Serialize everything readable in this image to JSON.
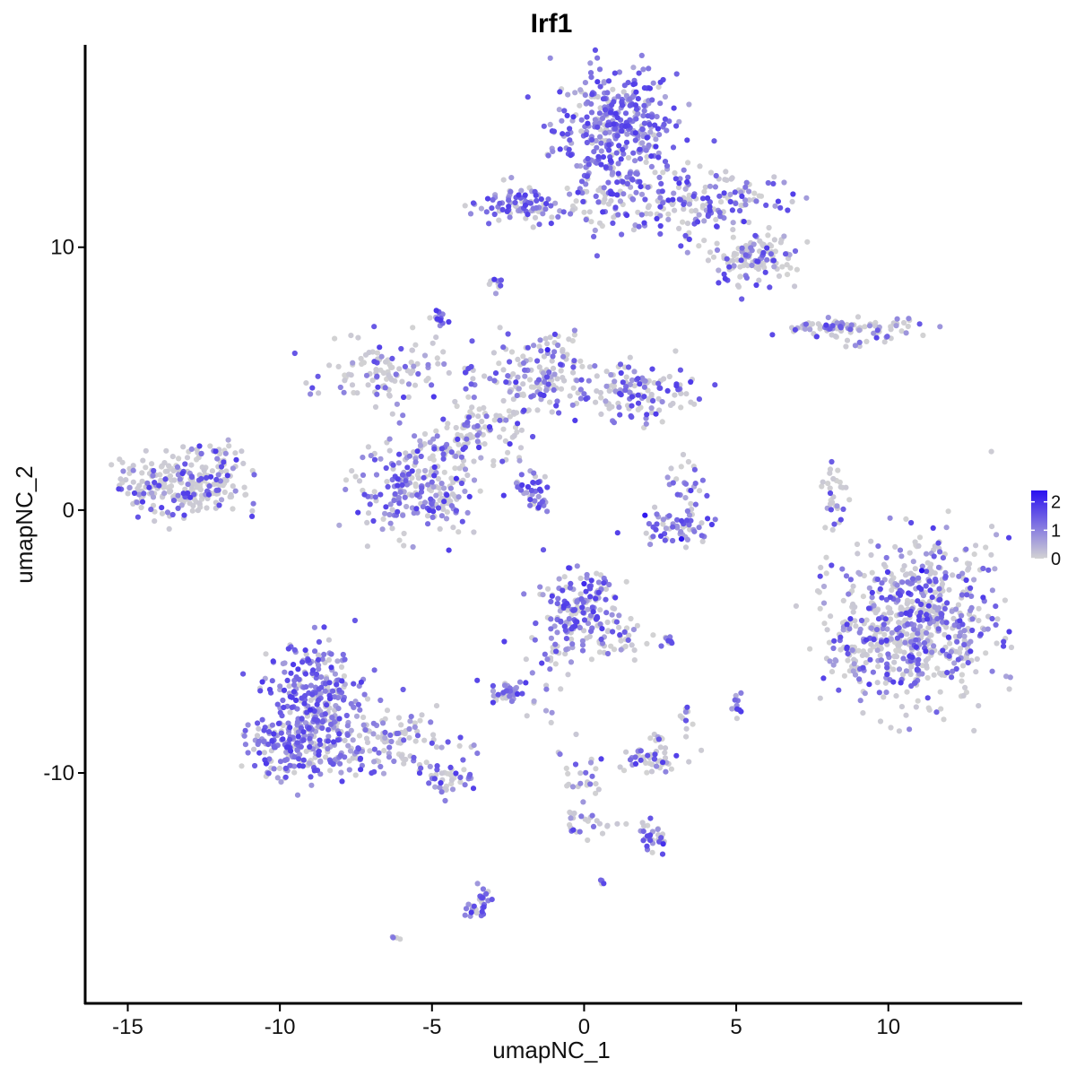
{
  "chart_data": {
    "type": "scatter",
    "title": "Irf1",
    "xlabel": "umapNC_1",
    "ylabel": "umapNC_2",
    "xlim": [
      -16.4,
      14.4
    ],
    "ylim": [
      -18.8,
      17.7
    ],
    "xticks": [
      -15,
      -10,
      -5,
      0,
      5,
      10
    ],
    "xtick_labels": [
      "-15",
      "-10",
      "-5",
      "0",
      "5",
      "10"
    ],
    "yticks": [
      -10,
      0,
      10
    ],
    "ytick_labels": [
      "-10",
      "0",
      "10"
    ],
    "grid": false,
    "legend": {
      "position": "right",
      "type": "colorbar",
      "min": 0,
      "max": 2.4,
      "ticks": [
        0,
        1,
        2
      ],
      "tick_labels": [
        "0",
        "1",
        "2"
      ],
      "low_color": "#d3d3d3",
      "high_color": "#2a11f0"
    },
    "colors": {
      "low": "#d3d3d3",
      "high": "#2a11f0"
    },
    "clusters": [
      {
        "cx": 1.0,
        "cy": 14.5,
        "sx": 1.0,
        "sy": 1.2,
        "n": 380,
        "expr": 0.85
      },
      {
        "cx": 3.8,
        "cy": 11.8,
        "sx": 1.5,
        "sy": 0.6,
        "n": 170,
        "expr": 0.55
      },
      {
        "cx": 5.5,
        "cy": 9.6,
        "sx": 0.7,
        "sy": 0.5,
        "n": 130,
        "expr": 0.3
      },
      {
        "cx": 0.6,
        "cy": 11.5,
        "sx": 1.2,
        "sy": 0.5,
        "n": 60,
        "expr": 0.35
      },
      {
        "cx": -2.3,
        "cy": 11.6,
        "sx": 0.6,
        "sy": 0.35,
        "n": 75,
        "expr": 0.75
      },
      {
        "cx": -2.9,
        "cy": 8.6,
        "sx": 0.15,
        "sy": 0.15,
        "n": 10,
        "expr": 0.6
      },
      {
        "cx": -4.7,
        "cy": 7.3,
        "sx": 0.15,
        "sy": 0.2,
        "n": 15,
        "expr": 0.7
      },
      {
        "cx": -6.5,
        "cy": 5.2,
        "sx": 1.0,
        "sy": 0.6,
        "n": 110,
        "expr": 0.35
      },
      {
        "cx": -5.5,
        "cy": 0.8,
        "sx": 1.0,
        "sy": 0.9,
        "n": 220,
        "expr": 0.55
      },
      {
        "cx": -3.5,
        "cy": 3.0,
        "sx": 0.8,
        "sy": 0.9,
        "n": 80,
        "expr": 0.3
      },
      {
        "cx": -1.5,
        "cy": 5.2,
        "sx": 0.9,
        "sy": 0.8,
        "n": 140,
        "expr": 0.4
      },
      {
        "cx": 1.8,
        "cy": 4.4,
        "sx": 1.0,
        "sy": 0.5,
        "n": 130,
        "expr": 0.5
      },
      {
        "cx": -1.8,
        "cy": 1.0,
        "sx": 0.3,
        "sy": 0.5,
        "n": 25,
        "expr": 0.75
      },
      {
        "cx": -13.3,
        "cy": 0.9,
        "sx": 1.0,
        "sy": 0.55,
        "n": 230,
        "expr": 0.3
      },
      {
        "cx": -12.0,
        "cy": 1.9,
        "sx": 0.5,
        "sy": 0.4,
        "n": 40,
        "expr": 0.3
      },
      {
        "cx": 3.1,
        "cy": -0.6,
        "sx": 0.7,
        "sy": 0.3,
        "n": 60,
        "expr": 0.65
      },
      {
        "cx": 3.4,
        "cy": 0.8,
        "sx": 0.4,
        "sy": 0.5,
        "n": 25,
        "expr": 0.4
      },
      {
        "cx": 8.2,
        "cy": 0.4,
        "sx": 0.2,
        "sy": 0.8,
        "n": 30,
        "expr": 0.3
      },
      {
        "cx": 9.2,
        "cy": 6.9,
        "sx": 1.1,
        "sy": 0.2,
        "n": 70,
        "expr": 0.5
      },
      {
        "cx": 10.9,
        "cy": -4.2,
        "sx": 1.3,
        "sy": 1.5,
        "n": 650,
        "expr": 0.45
      },
      {
        "cx": 8.7,
        "cy": -5.5,
        "sx": 0.4,
        "sy": 0.8,
        "n": 40,
        "expr": 0.3
      },
      {
        "cx": -0.3,
        "cy": -3.8,
        "sx": 0.7,
        "sy": 0.8,
        "n": 170,
        "expr": 0.65
      },
      {
        "cx": 1.0,
        "cy": -4.9,
        "sx": 0.6,
        "sy": 0.5,
        "n": 40,
        "expr": 0.45
      },
      {
        "cx": -1.2,
        "cy": -6.3,
        "sx": 0.4,
        "sy": 0.7,
        "n": 20,
        "expr": 0.5
      },
      {
        "cx": -2.5,
        "cy": -6.9,
        "sx": 0.3,
        "sy": 0.2,
        "n": 35,
        "expr": 0.7
      },
      {
        "cx": 2.8,
        "cy": -5.0,
        "sx": 0.2,
        "sy": 0.1,
        "n": 10,
        "expr": 0.6
      },
      {
        "cx": -8.8,
        "cy": -7.2,
        "sx": 0.8,
        "sy": 1.1,
        "n": 280,
        "expr": 0.75
      },
      {
        "cx": -9.5,
        "cy": -9.0,
        "sx": 0.9,
        "sy": 0.6,
        "n": 170,
        "expr": 0.75
      },
      {
        "cx": -6.6,
        "cy": -8.9,
        "sx": 1.2,
        "sy": 0.6,
        "n": 120,
        "expr": 0.4
      },
      {
        "cx": -4.6,
        "cy": -10.2,
        "sx": 0.5,
        "sy": 0.3,
        "n": 45,
        "expr": 0.5
      },
      {
        "cx": -3.4,
        "cy": -14.9,
        "sx": 0.2,
        "sy": 0.4,
        "n": 30,
        "expr": 0.8
      },
      {
        "cx": -6.1,
        "cy": -16.3,
        "sx": 0.15,
        "sy": 0.08,
        "n": 4,
        "expr": 0.2
      },
      {
        "cx": 2.2,
        "cy": -9.5,
        "sx": 0.5,
        "sy": 0.3,
        "n": 45,
        "expr": 0.25
      },
      {
        "cx": 2.3,
        "cy": -12.5,
        "sx": 0.3,
        "sy": 0.3,
        "n": 25,
        "expr": 0.55
      },
      {
        "cx": 2.4,
        "cy": -8.6,
        "sx": 0.15,
        "sy": 0.15,
        "n": 8,
        "expr": 0.3
      },
      {
        "cx": 0.0,
        "cy": -10.8,
        "sx": 0.4,
        "sy": 1.0,
        "n": 30,
        "expr": 0.35
      },
      {
        "cx": 5.0,
        "cy": -7.4,
        "sx": 0.12,
        "sy": 0.25,
        "n": 12,
        "expr": 0.7
      },
      {
        "cx": 3.4,
        "cy": -7.8,
        "sx": 0.15,
        "sy": 0.3,
        "n": 10,
        "expr": 0.4
      },
      {
        "cx": 0.6,
        "cy": -14.1,
        "sx": 0.1,
        "sy": 0.08,
        "n": 4,
        "expr": 0.7
      },
      {
        "cx": 1.0,
        "cy": -11.9,
        "sx": 0.3,
        "sy": 0.1,
        "n": 5,
        "expr": 0.4
      }
    ],
    "highlight_points": [
      {
        "x": 3.2,
        "y": -1.1,
        "value": 2.4
      },
      {
        "x": 2.0,
        "y": -0.2,
        "value": 2.3
      },
      {
        "x": 11.1,
        "y": -2.3,
        "value": 2.4
      },
      {
        "x": -1.2,
        "y": 6.1,
        "value": 2.2
      },
      {
        "x": -4.2,
        "y": 1.2,
        "value": 2.0
      },
      {
        "x": -9.0,
        "y": -7.6,
        "value": 2.0
      },
      {
        "x": 0.0,
        "y": -2.8,
        "value": 2.1
      },
      {
        "x": 2.6,
        "y": -12.7,
        "value": 2.0
      }
    ],
    "bridges": [
      {
        "x1": -2.2,
        "y1": 1.0,
        "x2": -1.2,
        "y2": -0.2,
        "n": 20,
        "expr": 0.75
      },
      {
        "x1": -5.0,
        "y1": 2.0,
        "x2": -1.0,
        "y2": 4.5,
        "n": 40,
        "expr": 0.45
      },
      {
        "x1": -4.0,
        "y1": 1.5,
        "x2": -3.6,
        "y2": 5.5,
        "n": 15,
        "expr": 0.4
      },
      {
        "x1": 6.7,
        "y1": 7.0,
        "x2": 8.6,
        "y2": 6.9,
        "n": 25,
        "expr": 0.35
      },
      {
        "x1": 8.6,
        "y1": 6.3,
        "x2": 9.3,
        "y2": 6.4,
        "n": 6,
        "expr": 0.3
      },
      {
        "x1": -0.7,
        "y1": -9.2,
        "x2": -0.3,
        "y2": -12.2,
        "n": 15,
        "expr": 0.4
      },
      {
        "x1": 1.9,
        "y1": -12.2,
        "x2": 2.3,
        "y2": -12.6,
        "n": 6,
        "expr": 0.5
      },
      {
        "x1": 3.1,
        "y1": 10.1,
        "x2": 3.4,
        "y2": 10.4,
        "n": 6,
        "expr": 0.4
      }
    ]
  }
}
